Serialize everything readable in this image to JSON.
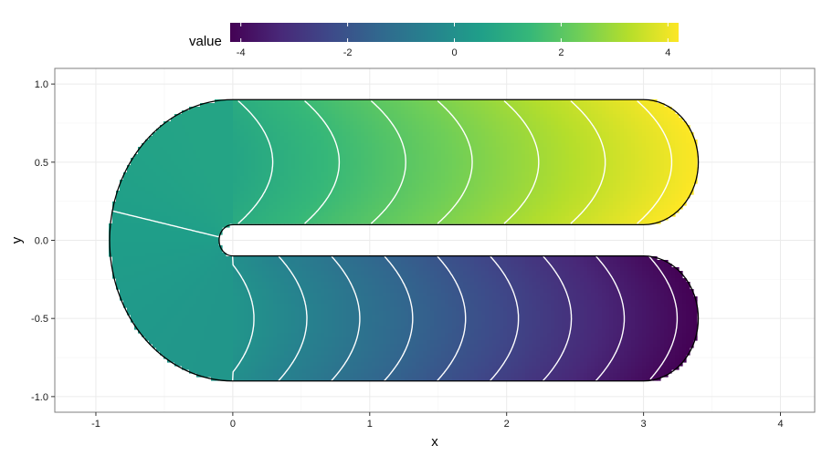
{
  "chart_data": {
    "type": "heatmap",
    "xlabel": "x",
    "ylabel": "y",
    "xlim": [
      -1.3,
      4.25
    ],
    "ylim": [
      -1.1,
      1.1
    ],
    "x_ticks": [
      -1,
      0,
      1,
      2,
      3,
      4
    ],
    "x_tick_labels": [
      "-1",
      "0",
      "1",
      "2",
      "3",
      "4"
    ],
    "y_ticks": [
      -1.0,
      -0.5,
      0.0,
      0.5,
      1.0
    ],
    "y_tick_labels": [
      "-1.0",
      "-0.5",
      "0.0",
      "0.5",
      "1.0"
    ],
    "grid": true,
    "legend": {
      "title": "value",
      "position": "top",
      "range": [
        -4.2,
        4.2
      ],
      "ticks": [
        -4,
        -2,
        0,
        2,
        4
      ],
      "tick_labels": [
        "-4",
        "-2",
        "0",
        "2",
        "4"
      ],
      "colormap": "viridis"
    },
    "shape": {
      "description_free": true,
      "upper_arm": {
        "x_range": [
          0,
          3
        ],
        "y_range": [
          0.1,
          0.9
        ],
        "value_at_start": 0.7,
        "value_at_end": 4.2
      },
      "lower_arm": {
        "x_range": [
          0,
          3
        ],
        "y_range": [
          -0.9,
          -0.1
        ],
        "value_at_start": 0.2,
        "value_at_end": -4.2
      },
      "left_cap": {
        "center": [
          0,
          0
        ],
        "outer_radius": 0.9,
        "inner_radius": 0.1,
        "value": 0.0
      },
      "right_caps": {
        "radius": 0.4,
        "centers": [
          [
            3,
            0.5
          ],
          [
            3,
            -0.5
          ]
        ]
      }
    },
    "contour_levels": [
      -4,
      -3.5,
      -3,
      -2.5,
      -2,
      -1.5,
      -1,
      -0.5,
      0,
      0.5,
      1,
      1.5,
      2,
      2.5,
      3,
      3.5,
      4
    ]
  },
  "colors": {
    "panel_border": "#7f7f7f",
    "grid_major": "#ebebeb",
    "grid_minor": "#f5f5f5",
    "outline": "#000000",
    "contour": "#ffffff",
    "viridis": [
      "#440154",
      "#482878",
      "#3e4989",
      "#31688e",
      "#26828e",
      "#1f9e89",
      "#35b779",
      "#6ece58",
      "#b5de2b",
      "#fde725"
    ]
  }
}
